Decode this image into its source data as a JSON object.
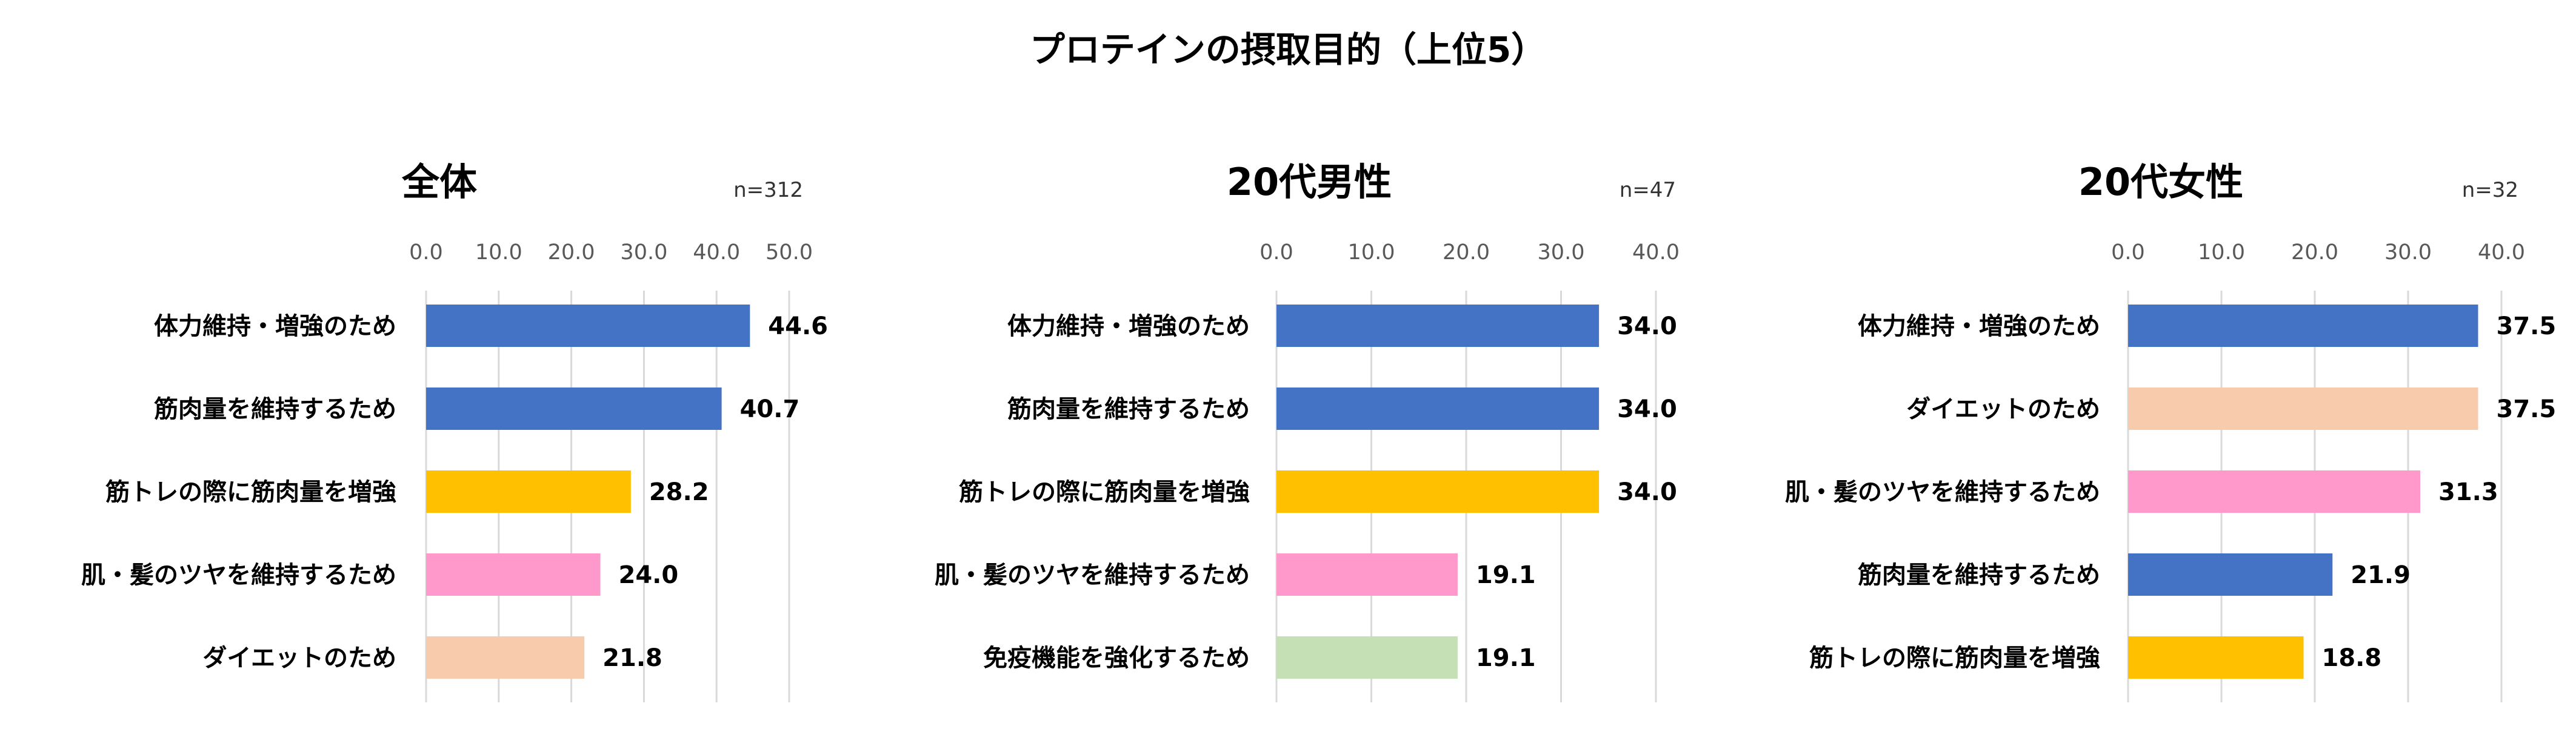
{
  "title": "プロテインの摂取目的（上位5）",
  "colors": {
    "blue": "#4472C4",
    "yellow": "#FFC000",
    "pink": "#FF99CC",
    "peach": "#F8CBAD",
    "green": "#C5E0B4"
  },
  "chart_data": [
    {
      "type": "bar",
      "orientation": "horizontal",
      "title": "全体",
      "n_label": "n=312",
      "xlim": [
        0,
        50
      ],
      "ticks": [
        "0.0",
        "10.0",
        "20.0",
        "30.0",
        "40.0",
        "50.0"
      ],
      "tick_values": [
        0,
        10,
        20,
        30,
        40,
        50
      ],
      "grid": true,
      "categories": [
        "体力維持・増強のため",
        "筋肉量を維持するため",
        "筋トレの際に筋肉量を増強",
        "肌・髪のツヤを維持するため",
        "ダイエットのため"
      ],
      "values": [
        44.6,
        40.7,
        28.2,
        24.0,
        21.8
      ],
      "labels": [
        "44.6",
        "40.7",
        "28.2",
        "24.0",
        "21.8"
      ],
      "bar_colors": [
        "#4472C4",
        "#4472C4",
        "#FFC000",
        "#FF99CC",
        "#F8CBAD"
      ]
    },
    {
      "type": "bar",
      "orientation": "horizontal",
      "title": "20代男性",
      "n_label": "n=47",
      "xlim": [
        0,
        40
      ],
      "ticks": [
        "0.0",
        "10.0",
        "20.0",
        "30.0",
        "40.0"
      ],
      "tick_values": [
        0,
        10,
        20,
        30,
        40
      ],
      "grid": true,
      "categories": [
        "体力維持・増強のため",
        "筋肉量を維持するため",
        "筋トレの際に筋肉量を増強",
        "肌・髪のツヤを維持するため",
        "免疫機能を強化するため"
      ],
      "values": [
        34.0,
        34.0,
        34.0,
        19.1,
        19.1
      ],
      "labels": [
        "34.0",
        "34.0",
        "34.0",
        "19.1",
        "19.1"
      ],
      "bar_colors": [
        "#4472C4",
        "#4472C4",
        "#FFC000",
        "#FF99CC",
        "#C5E0B4"
      ]
    },
    {
      "type": "bar",
      "orientation": "horizontal",
      "title": "20代女性",
      "n_label": "n=32",
      "xlim": [
        0,
        40
      ],
      "ticks": [
        "0.0",
        "10.0",
        "20.0",
        "30.0",
        "40.0"
      ],
      "tick_values": [
        0,
        10,
        20,
        30,
        40
      ],
      "grid": true,
      "categories": [
        "体力維持・増強のため",
        "ダイエットのため",
        "肌・髪のツヤを維持するため",
        "筋肉量を維持するため",
        "筋トレの際に筋肉量を増強"
      ],
      "values": [
        37.5,
        37.5,
        31.3,
        21.9,
        18.8
      ],
      "labels": [
        "37.5",
        "37.5",
        "31.3",
        "21.9",
        "18.8"
      ],
      "bar_colors": [
        "#4472C4",
        "#F8CBAD",
        "#FF99CC",
        "#4472C4",
        "#FFC000"
      ]
    }
  ]
}
